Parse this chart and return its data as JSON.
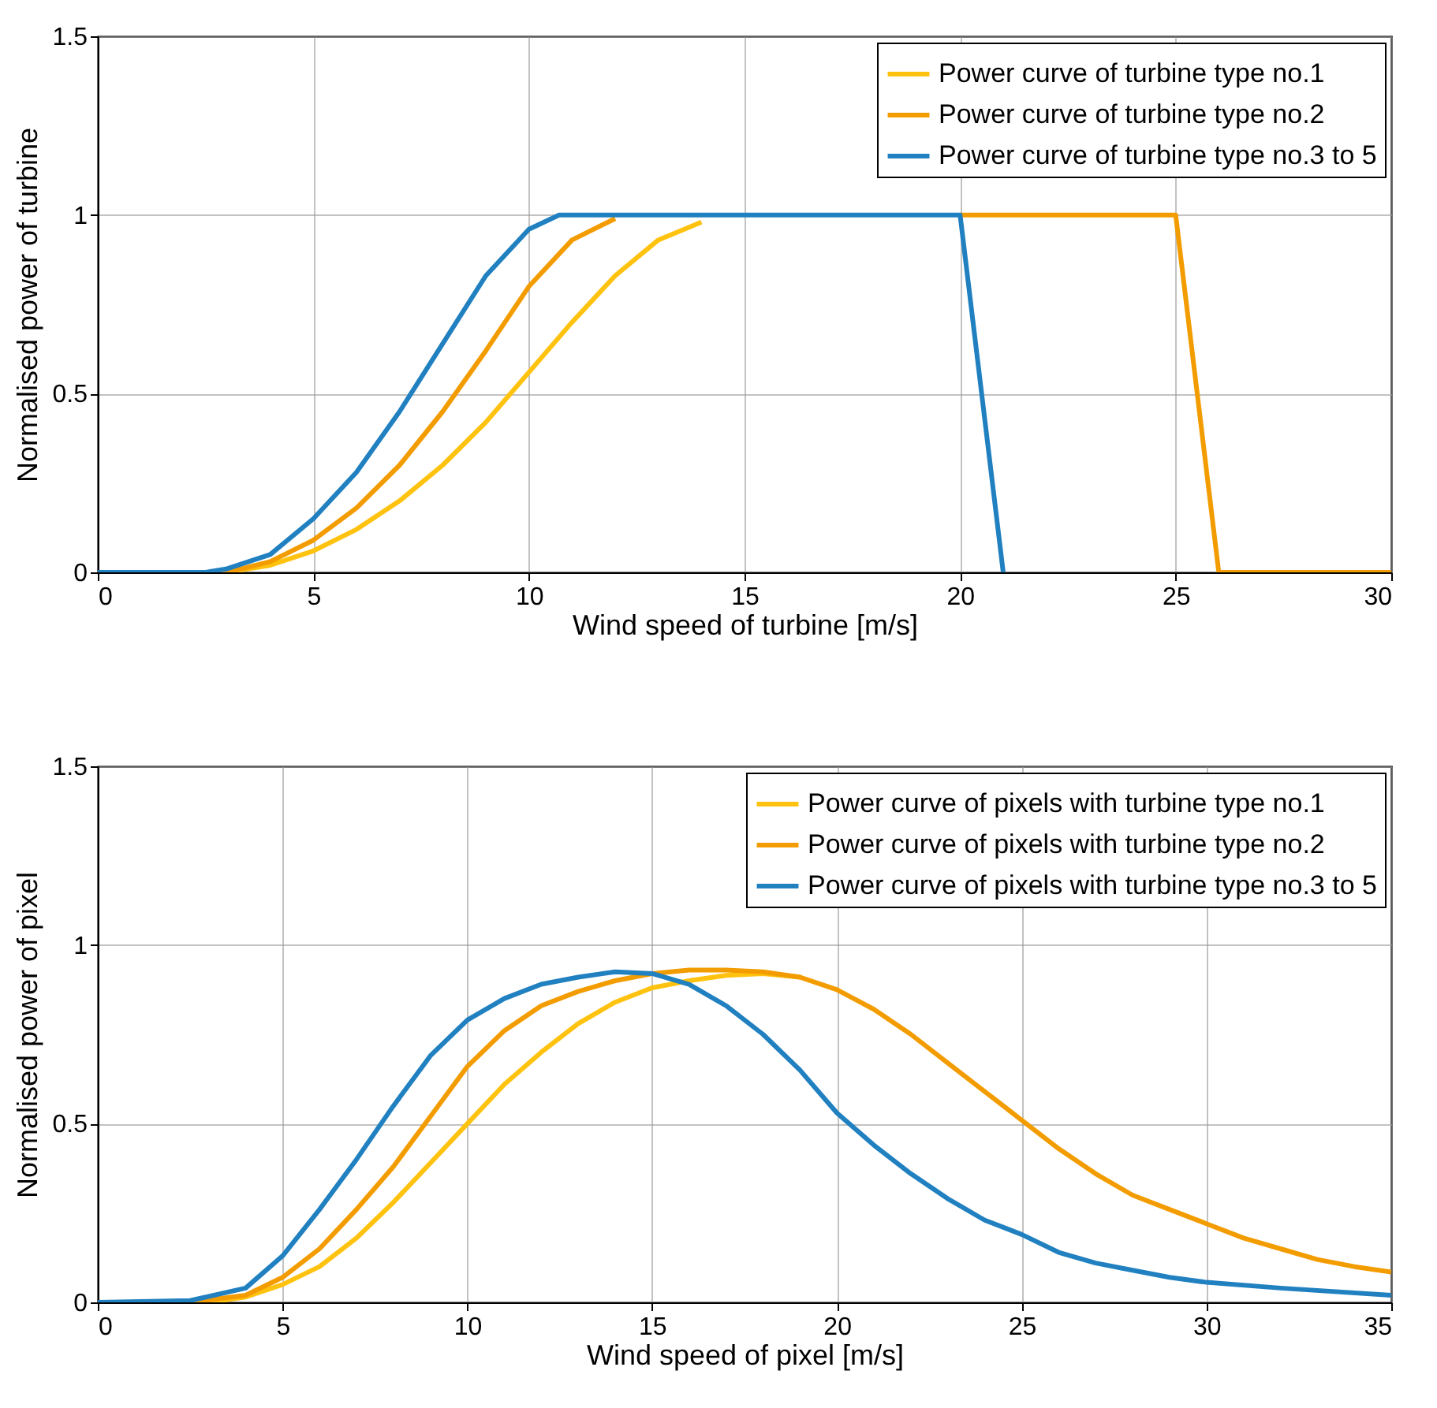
{
  "chart_data": [
    {
      "type": "line",
      "xlabel": "Wind speed of turbine [m/s]",
      "ylabel": "Normalised power of turbine",
      "xlim": [
        0,
        30
      ],
      "ylim": [
        0,
        1.5
      ],
      "xticks": [
        0,
        5,
        10,
        15,
        20,
        25,
        30
      ],
      "yticks": [
        0,
        0.5,
        1,
        1.5
      ],
      "grid": true,
      "legend": "top right",
      "series": [
        {
          "name": "Power curve of turbine type no.1",
          "color": "#ffc20e",
          "x": [
            0,
            3,
            4,
            5,
            6,
            7,
            8,
            9,
            10,
            11,
            12,
            13,
            14
          ],
          "values": [
            0,
            0,
            0.02,
            0.06,
            0.12,
            0.2,
            0.3,
            0.42,
            0.56,
            0.7,
            0.83,
            0.93,
            0.98
          ]
        },
        {
          "name": "Power curve of turbine type no.2",
          "color": "#f39c00",
          "x": [
            0,
            3,
            4,
            5,
            6,
            7,
            8,
            9,
            10,
            11,
            12,
            13,
            20,
            25,
            26,
            30
          ],
          "values": [
            0,
            0,
            0.03,
            0.09,
            0.18,
            0.3,
            0.45,
            0.62,
            0.8,
            0.93,
            0.99,
            null,
            1,
            1,
            0,
            0
          ]
        },
        {
          "name": "Power curve of turbine type no.3 to 5",
          "color": "#2080c0",
          "x": [
            0,
            2.5,
            3,
            4,
            5,
            6,
            7,
            8,
            9,
            10,
            10.7,
            20,
            21
          ],
          "values": [
            0,
            0,
            0.01,
            0.05,
            0.15,
            0.28,
            0.45,
            0.64,
            0.83,
            0.96,
            1,
            1,
            0
          ]
        }
      ]
    },
    {
      "type": "line",
      "xlabel": "Wind speed of pixel [m/s]",
      "ylabel": "Normalised power of pixel",
      "xlim": [
        0,
        35
      ],
      "ylim": [
        0,
        1.5
      ],
      "xticks": [
        0,
        5,
        10,
        15,
        20,
        25,
        30,
        35
      ],
      "yticks": [
        0,
        0.5,
        1,
        1.5
      ],
      "grid": true,
      "legend": "top right",
      "series": [
        {
          "name": "Power curve of pixels with turbine type no.1",
          "color": "#ffc20e",
          "x": [
            0,
            3,
            4,
            5,
            6,
            7,
            8,
            9,
            10,
            11,
            12,
            13,
            14,
            15,
            16,
            17,
            18,
            19
          ],
          "values": [
            0,
            0,
            0.015,
            0.05,
            0.1,
            0.18,
            0.28,
            0.39,
            0.5,
            0.61,
            0.7,
            0.78,
            0.84,
            0.88,
            0.9,
            0.915,
            0.92,
            0.91
          ]
        },
        {
          "name": "Power curve of pixels with turbine type no.2",
          "color": "#f39c00",
          "x": [
            0,
            2.5,
            4,
            5,
            6,
            7,
            8,
            9,
            10,
            11,
            12,
            13,
            14,
            15,
            16,
            17,
            18,
            19,
            20,
            21,
            22,
            23,
            24,
            25,
            26,
            27,
            28,
            29,
            30,
            31,
            32,
            33,
            34,
            35
          ],
          "values": [
            0,
            0,
            0.02,
            0.07,
            0.15,
            0.26,
            0.38,
            0.52,
            0.66,
            0.76,
            0.83,
            0.87,
            0.9,
            0.92,
            0.93,
            0.93,
            0.925,
            0.91,
            0.875,
            0.82,
            0.75,
            0.67,
            0.59,
            0.51,
            0.43,
            0.36,
            0.3,
            0.26,
            0.22,
            0.18,
            0.15,
            0.12,
            0.1,
            0.085
          ]
        },
        {
          "name": "Power curve of pixels with turbine type no.3 to 5",
          "color": "#2080c0",
          "x": [
            0,
            2.5,
            4,
            5,
            6,
            7,
            8,
            9,
            10,
            11,
            12,
            13,
            14,
            15,
            16,
            17,
            18,
            19,
            20,
            21,
            22,
            23,
            24,
            25,
            26,
            27,
            28,
            29,
            30,
            32,
            35
          ],
          "values": [
            0,
            0.005,
            0.04,
            0.13,
            0.26,
            0.4,
            0.55,
            0.69,
            0.79,
            0.85,
            0.89,
            0.91,
            0.925,
            0.92,
            0.89,
            0.83,
            0.75,
            0.65,
            0.53,
            0.44,
            0.36,
            0.29,
            0.23,
            0.19,
            0.14,
            0.11,
            0.09,
            0.07,
            0.056,
            0.04,
            0.02
          ]
        }
      ]
    }
  ]
}
